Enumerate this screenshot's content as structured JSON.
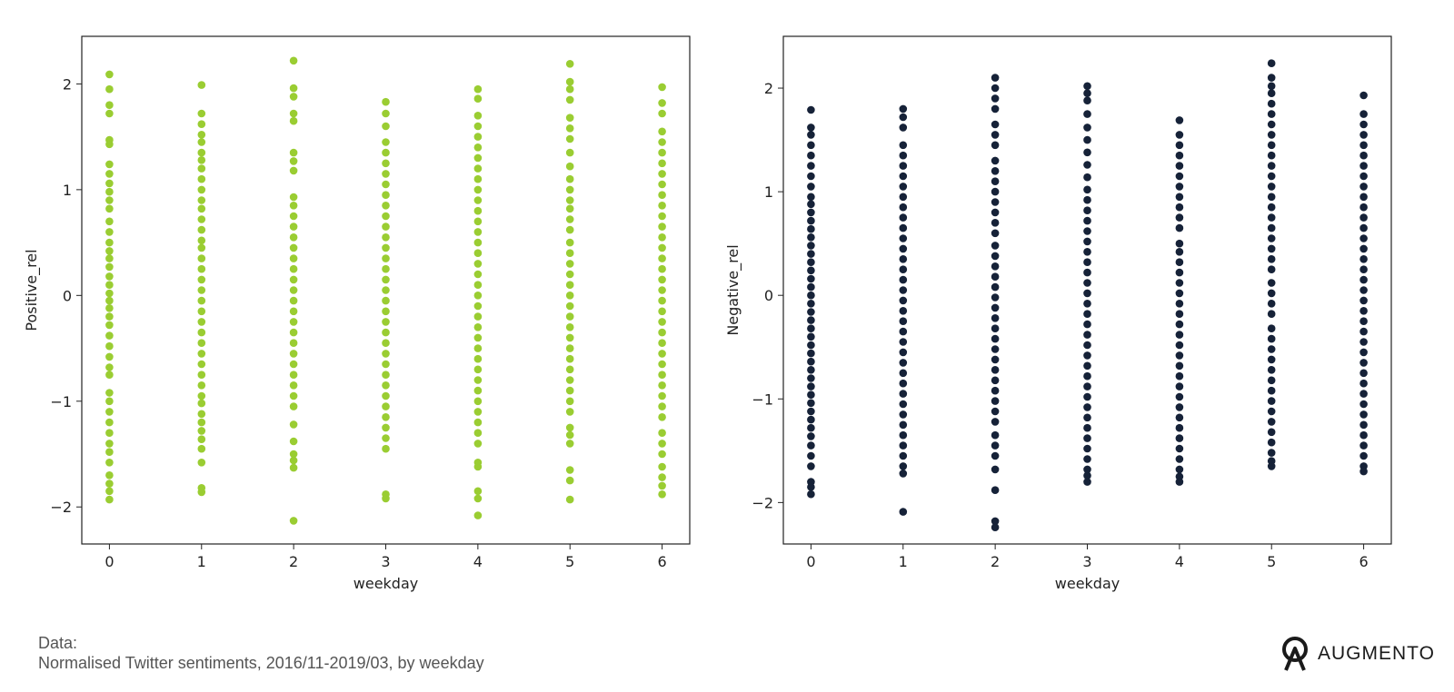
{
  "caption": {
    "line1": "Data:",
    "line2": "Normalised Twitter sentiments, 2016/11-2019/03, by weekday"
  },
  "brand": {
    "name": "AUGMENTO",
    "icon": "augmento-logo-icon"
  },
  "chart_data": [
    {
      "type": "scatter",
      "title": "",
      "xlabel": "weekday",
      "ylabel": "Positive_rel",
      "color": "#9acd32",
      "xlim": [
        -0.3,
        6.3
      ],
      "ylim": [
        -2.35,
        2.45
      ],
      "xticks": [
        0,
        1,
        2,
        3,
        4,
        5,
        6
      ],
      "yticks": [
        -2,
        -1,
        0,
        1,
        2
      ],
      "grid": false,
      "columns": [
        {
          "x": 0,
          "y": [
            2.09,
            1.95,
            1.8,
            1.72,
            1.47,
            1.43,
            1.24,
            1.15,
            1.06,
            0.98,
            0.9,
            0.82,
            0.7,
            0.6,
            0.5,
            0.42,
            0.35,
            0.27,
            0.18,
            0.1,
            0.02,
            -0.05,
            -0.12,
            -0.2,
            -0.28,
            -0.38,
            -0.48,
            -0.58,
            -0.68,
            -0.75,
            -0.92,
            -1.0,
            -1.1,
            -1.2,
            -1.3,
            -1.4,
            -1.48,
            -1.58,
            -1.7,
            -1.78,
            -1.85,
            -1.93
          ]
        },
        {
          "x": 1,
          "y": [
            1.99,
            1.72,
            1.62,
            1.52,
            1.45,
            1.35,
            1.28,
            1.2,
            1.1,
            1.0,
            0.9,
            0.82,
            0.72,
            0.62,
            0.52,
            0.45,
            0.35,
            0.25,
            0.15,
            0.05,
            -0.05,
            -0.15,
            -0.25,
            -0.35,
            -0.45,
            -0.55,
            -0.65,
            -0.75,
            -0.85,
            -0.95,
            -1.02,
            -1.12,
            -1.2,
            -1.28,
            -1.36,
            -1.45,
            -1.58,
            -1.82,
            -1.86
          ]
        },
        {
          "x": 2,
          "y": [
            2.22,
            1.96,
            1.88,
            1.72,
            1.65,
            1.35,
            1.27,
            1.18,
            0.93,
            0.85,
            0.75,
            0.65,
            0.55,
            0.45,
            0.35,
            0.25,
            0.15,
            0.05,
            -0.05,
            -0.15,
            -0.25,
            -0.35,
            -0.45,
            -0.55,
            -0.65,
            -0.75,
            -0.85,
            -0.95,
            -1.05,
            -1.22,
            -1.38,
            -1.5,
            -1.56,
            -1.63,
            -2.13
          ]
        },
        {
          "x": 3,
          "y": [
            1.83,
            1.72,
            1.6,
            1.45,
            1.35,
            1.25,
            1.15,
            1.05,
            0.95,
            0.85,
            0.75,
            0.65,
            0.55,
            0.45,
            0.35,
            0.25,
            0.15,
            0.05,
            -0.05,
            -0.15,
            -0.25,
            -0.35,
            -0.45,
            -0.55,
            -0.65,
            -0.75,
            -0.85,
            -0.95,
            -1.05,
            -1.15,
            -1.25,
            -1.35,
            -1.45,
            -1.88,
            -1.92
          ]
        },
        {
          "x": 4,
          "y": [
            1.95,
            1.86,
            1.7,
            1.6,
            1.5,
            1.4,
            1.3,
            1.2,
            1.1,
            1.0,
            0.9,
            0.8,
            0.7,
            0.6,
            0.5,
            0.4,
            0.3,
            0.2,
            0.1,
            0.0,
            -0.1,
            -0.2,
            -0.3,
            -0.4,
            -0.5,
            -0.6,
            -0.7,
            -0.8,
            -0.9,
            -1.0,
            -1.1,
            -1.2,
            -1.3,
            -1.4,
            -1.58,
            -1.62,
            -1.85,
            -1.92,
            -2.08
          ]
        },
        {
          "x": 5,
          "y": [
            2.19,
            2.02,
            1.95,
            1.85,
            1.68,
            1.58,
            1.48,
            1.35,
            1.22,
            1.1,
            1.0,
            0.9,
            0.82,
            0.72,
            0.62,
            0.5,
            0.4,
            0.3,
            0.2,
            0.1,
            0.0,
            -0.1,
            -0.2,
            -0.3,
            -0.4,
            -0.5,
            -0.6,
            -0.7,
            -0.8,
            -0.9,
            -1.0,
            -1.1,
            -1.25,
            -1.32,
            -1.4,
            -1.65,
            -1.75,
            -1.93
          ]
        },
        {
          "x": 6,
          "y": [
            1.97,
            1.82,
            1.72,
            1.55,
            1.45,
            1.35,
            1.25,
            1.15,
            1.05,
            0.95,
            0.85,
            0.75,
            0.65,
            0.55,
            0.45,
            0.35,
            0.25,
            0.15,
            0.05,
            -0.05,
            -0.15,
            -0.25,
            -0.35,
            -0.45,
            -0.55,
            -0.65,
            -0.75,
            -0.85,
            -0.95,
            -1.05,
            -1.15,
            -1.3,
            -1.4,
            -1.5,
            -1.62,
            -1.72,
            -1.8,
            -1.88
          ]
        }
      ]
    },
    {
      "type": "scatter",
      "title": "",
      "xlabel": "weekday",
      "ylabel": "Negative_rel",
      "color": "#162238",
      "xlim": [
        -0.3,
        6.3
      ],
      "ylim": [
        -2.4,
        2.5
      ],
      "xticks": [
        0,
        1,
        2,
        3,
        4,
        5,
        6
      ],
      "yticks": [
        -2,
        -1,
        0,
        1,
        2
      ],
      "grid": false,
      "columns": [
        {
          "x": 0,
          "y": [
            1.79,
            1.62,
            1.55,
            1.45,
            1.35,
            1.25,
            1.15,
            1.05,
            0.95,
            0.88,
            0.8,
            0.72,
            0.64,
            0.56,
            0.48,
            0.4,
            0.32,
            0.24,
            0.16,
            0.08,
            0.0,
            -0.08,
            -0.16,
            -0.24,
            -0.32,
            -0.4,
            -0.48,
            -0.56,
            -0.64,
            -0.72,
            -0.8,
            -0.88,
            -0.96,
            -1.04,
            -1.12,
            -1.2,
            -1.28,
            -1.36,
            -1.45,
            -1.55,
            -1.65,
            -1.8,
            -1.85,
            -1.92
          ]
        },
        {
          "x": 1,
          "y": [
            1.8,
            1.72,
            1.62,
            1.45,
            1.35,
            1.25,
            1.15,
            1.05,
            0.95,
            0.85,
            0.75,
            0.65,
            0.55,
            0.45,
            0.35,
            0.25,
            0.15,
            0.05,
            -0.05,
            -0.15,
            -0.25,
            -0.35,
            -0.45,
            -0.55,
            -0.65,
            -0.75,
            -0.85,
            -0.95,
            -1.05,
            -1.15,
            -1.25,
            -1.35,
            -1.45,
            -1.55,
            -1.65,
            -1.72,
            -2.09
          ]
        },
        {
          "x": 2,
          "y": [
            2.1,
            2.0,
            1.9,
            1.8,
            1.65,
            1.55,
            1.45,
            1.3,
            1.2,
            1.1,
            1.0,
            0.9,
            0.8,
            0.7,
            0.6,
            0.48,
            0.38,
            0.28,
            0.18,
            0.08,
            -0.02,
            -0.12,
            -0.22,
            -0.32,
            -0.42,
            -0.52,
            -0.62,
            -0.72,
            -0.82,
            -0.92,
            -1.02,
            -1.12,
            -1.22,
            -1.35,
            -1.45,
            -1.55,
            -1.68,
            -1.88,
            -2.18,
            -2.24
          ]
        },
        {
          "x": 3,
          "y": [
            2.02,
            1.95,
            1.88,
            1.75,
            1.62,
            1.5,
            1.38,
            1.26,
            1.14,
            1.02,
            0.92,
            0.82,
            0.72,
            0.62,
            0.52,
            0.42,
            0.32,
            0.22,
            0.12,
            0.02,
            -0.08,
            -0.18,
            -0.28,
            -0.38,
            -0.48,
            -0.58,
            -0.68,
            -0.78,
            -0.88,
            -0.98,
            -1.08,
            -1.18,
            -1.28,
            -1.38,
            -1.48,
            -1.58,
            -1.68,
            -1.74,
            -1.8
          ]
        },
        {
          "x": 4,
          "y": [
            1.69,
            1.55,
            1.45,
            1.35,
            1.25,
            1.15,
            1.05,
            0.95,
            0.85,
            0.75,
            0.65,
            0.5,
            0.42,
            0.32,
            0.22,
            0.12,
            0.02,
            -0.08,
            -0.18,
            -0.28,
            -0.38,
            -0.48,
            -0.58,
            -0.68,
            -0.78,
            -0.88,
            -0.98,
            -1.08,
            -1.18,
            -1.28,
            -1.38,
            -1.48,
            -1.58,
            -1.68,
            -1.75,
            -1.8
          ]
        },
        {
          "x": 5,
          "y": [
            2.24,
            2.1,
            2.02,
            1.95,
            1.85,
            1.75,
            1.65,
            1.55,
            1.45,
            1.35,
            1.25,
            1.15,
            1.05,
            0.95,
            0.85,
            0.75,
            0.65,
            0.55,
            0.45,
            0.35,
            0.25,
            0.12,
            0.02,
            -0.08,
            -0.18,
            -0.32,
            -0.42,
            -0.52,
            -0.62,
            -0.72,
            -0.82,
            -0.92,
            -1.02,
            -1.12,
            -1.22,
            -1.32,
            -1.42,
            -1.52,
            -1.6,
            -1.65
          ]
        },
        {
          "x": 6,
          "y": [
            1.93,
            1.75,
            1.65,
            1.55,
            1.45,
            1.35,
            1.25,
            1.15,
            1.05,
            0.95,
            0.85,
            0.75,
            0.65,
            0.55,
            0.45,
            0.35,
            0.25,
            0.15,
            0.05,
            -0.05,
            -0.15,
            -0.25,
            -0.35,
            -0.45,
            -0.55,
            -0.65,
            -0.75,
            -0.85,
            -0.95,
            -1.05,
            -1.15,
            -1.25,
            -1.35,
            -1.45,
            -1.55,
            -1.65,
            -1.7
          ]
        }
      ]
    }
  ]
}
